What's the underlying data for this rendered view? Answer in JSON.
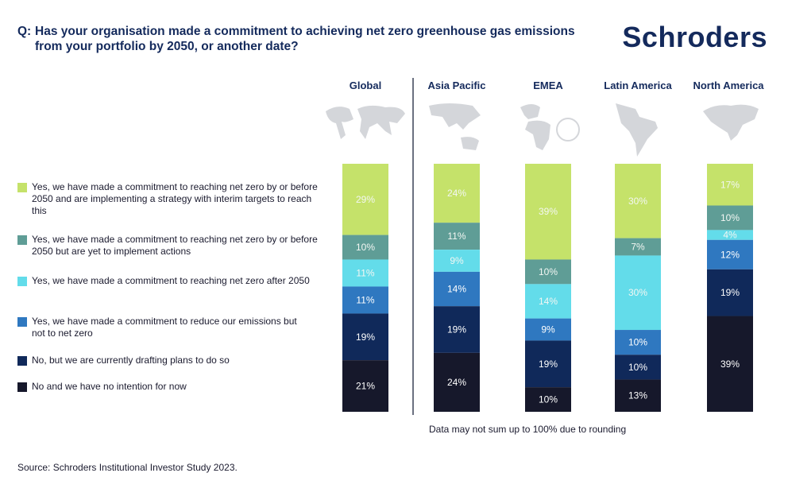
{
  "header": {
    "q_prefix": "Q:",
    "question": "Has your organisation made a commitment to achieving net zero greenhouse gas emissions from your portfolio by 2050, or another date?",
    "logo": "Schroders"
  },
  "footer": {
    "note": "Data may not sum up to 100% due to rounding",
    "source": "Source: Schroders Institutional Investor Study 2023."
  },
  "chart_data": {
    "type": "bar",
    "stacked": true,
    "orientation": "vertical",
    "categories": [
      "Global",
      "Asia Pacific",
      "EMEA",
      "Latin America",
      "North America"
    ],
    "unit": "%",
    "legend_position": "left",
    "grid": false,
    "series": [
      {
        "name": "Yes, we have made a commitment to reaching net zero by or before 2050 and are implementing a strategy with interim targets to reach this",
        "color": "#c5e26a",
        "values": [
          29,
          24,
          39,
          30,
          17
        ]
      },
      {
        "name": "Yes, we have made a commitment to reaching net zero by or before 2050 but are yet to implement actions",
        "color": "#5f9d96",
        "values": [
          10,
          11,
          10,
          7,
          10
        ]
      },
      {
        "name": "Yes, we have made a commitment to reaching net zero after 2050",
        "color": "#63dcea",
        "values": [
          11,
          9,
          14,
          30,
          4
        ]
      },
      {
        "name": "Yes, we have made a commitment to reduce our emissions but not to net zero",
        "color": "#2f78c0",
        "values": [
          11,
          14,
          9,
          10,
          12
        ]
      },
      {
        "name": "No, but we are currently drafting plans to do so",
        "color": "#10295a",
        "values": [
          19,
          19,
          19,
          10,
          19
        ]
      },
      {
        "name": "No and we have no intention for now",
        "color": "#16182b",
        "values": [
          21,
          24,
          10,
          13,
          39
        ]
      }
    ]
  }
}
